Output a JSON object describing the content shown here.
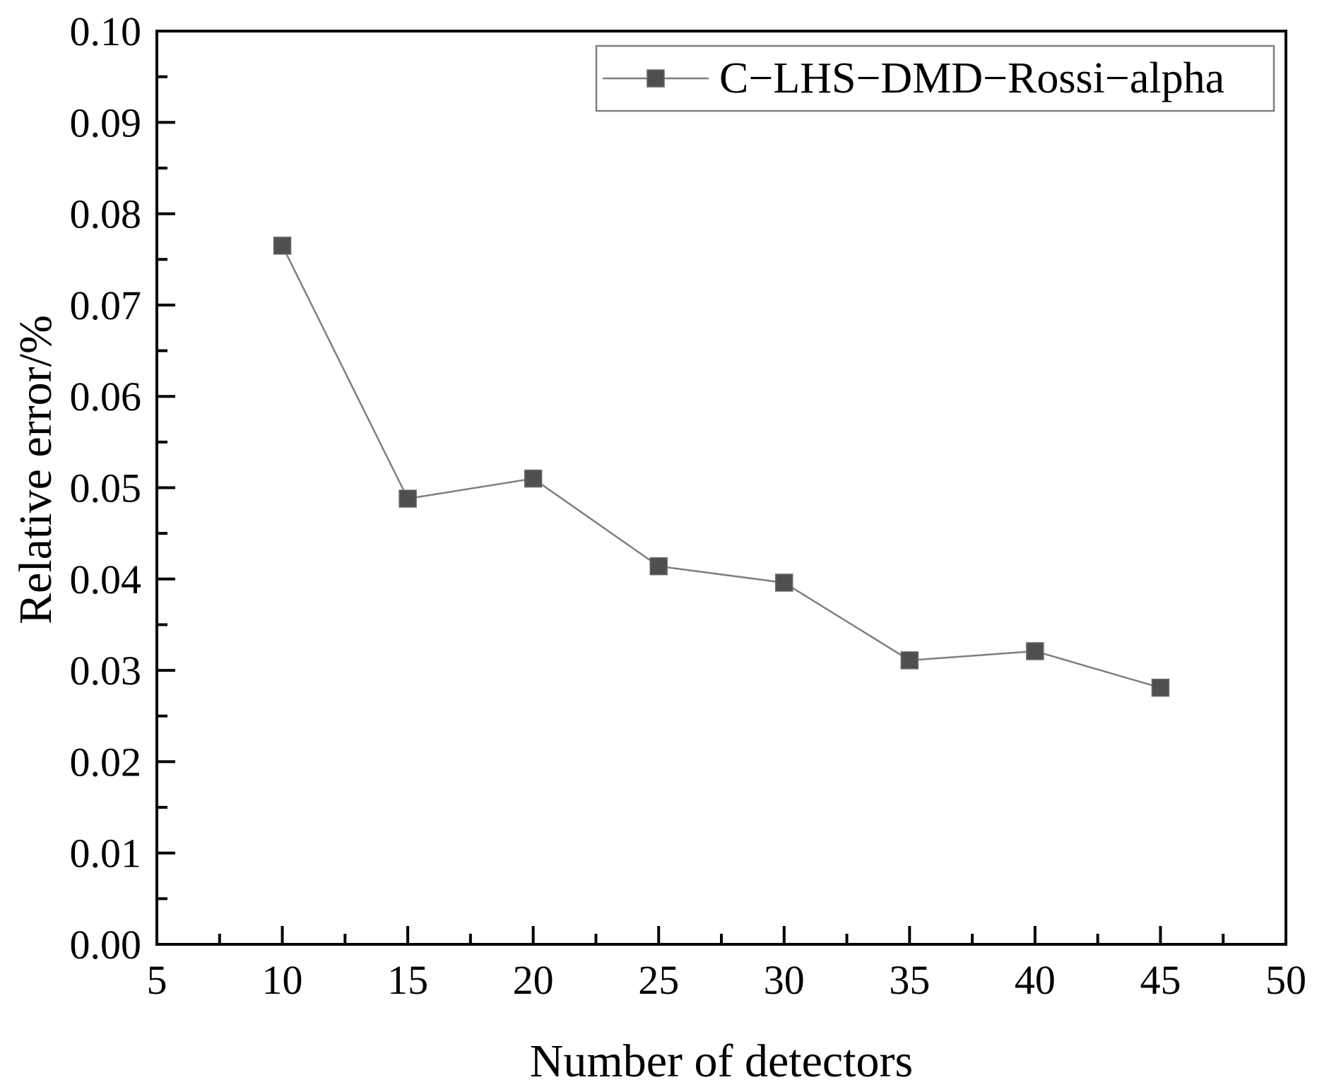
{
  "page": {
    "background": "#ffffff"
  },
  "chart_data": {
    "type": "line",
    "title": "",
    "xlabel": "Number of detectors",
    "ylabel": "Relative error/%",
    "xlim": [
      5,
      50
    ],
    "ylim": [
      0.0,
      0.1
    ],
    "x_major_ticks": [
      5,
      10,
      15,
      20,
      25,
      30,
      35,
      40,
      45,
      50
    ],
    "x_minor_tick_step": 2.5,
    "y_major_ticks": [
      0.0,
      0.01,
      0.02,
      0.03,
      0.04,
      0.05,
      0.06,
      0.07,
      0.08,
      0.09,
      0.1
    ],
    "y_minor_tick_step": 0.005,
    "y_tick_decimals": 2,
    "grid": false,
    "axis_color": "#000000",
    "legend": {
      "position": "top-right-inside",
      "border_color": "#7f7f7f",
      "background": "#ffffff"
    },
    "series": [
      {
        "name": "C−LHS−DMD−Rossi−alpha",
        "marker": "square",
        "line_color": "#7f7f7f",
        "marker_color": "#4f4f4f",
        "marker_edge_color": "#6a6a6a",
        "x": [
          10,
          15,
          20,
          25,
          30,
          35,
          40,
          45
        ],
        "y": [
          0.0765,
          0.0488,
          0.051,
          0.0414,
          0.0396,
          0.0311,
          0.0321,
          0.0281
        ]
      }
    ]
  }
}
